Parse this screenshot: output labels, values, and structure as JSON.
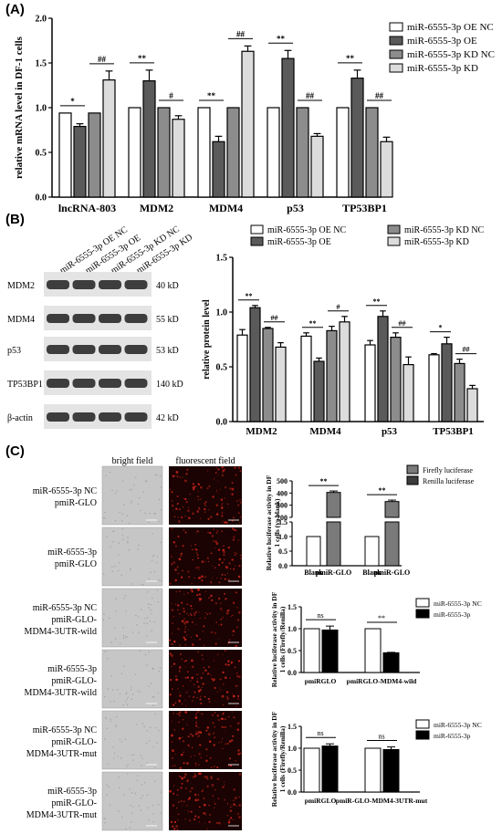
{
  "panels": {
    "a": "(A)",
    "b": "(B)",
    "c": "(C)"
  },
  "colors": {
    "oe_nc": "#ffffff",
    "oe": "#5a5a5a",
    "kd_nc": "#8c8c8c",
    "kd": "#dcdcdc",
    "firefly": "#787878",
    "renilla": "#3c3c3c",
    "black": "#000000",
    "red_field": "#c2241b"
  },
  "blot": {
    "lanes": [
      "miR-6555-3p OE NC",
      "miR-6555-3p OE",
      "miR-6555-3p KD NC",
      "miR-6555-3p KD"
    ],
    "rows": [
      {
        "name": "MDM2",
        "kd": "40 kD"
      },
      {
        "name": "MDM4",
        "kd": "55 kD"
      },
      {
        "name": "p53",
        "kd": "53 kD"
      },
      {
        "name": "TP53BP1",
        "kd": "140 kD"
      },
      {
        "name": "β-actin",
        "kd": "42 kD"
      }
    ]
  },
  "micro": {
    "col_headers": [
      "bright field",
      "fluorescent field"
    ],
    "rows": [
      [
        "miR-6555-3p NC",
        "pmiR-GLO"
      ],
      [
        "miR-6555-3p",
        "pmiR-GLO"
      ],
      [
        "miR-6555-3p NC",
        "pmiR-GLO-",
        "MDM4-3UTR-wild"
      ],
      [
        "miR-6555-3p",
        "pmiR-GLO-",
        "MDM4-3UTR-wild"
      ],
      [
        "miR-6555-3p NC",
        "pmiR-GLO-",
        "MDM4-3UTR-mut"
      ],
      [
        "miR-6555-3p",
        "pmiR-GLO-",
        "MDM4-3UTR-mut"
      ]
    ]
  },
  "chart_data": [
    {
      "id": "A",
      "type": "bar",
      "ylabel": "relative mRNA level in DF-1 cells",
      "ylim": [
        0,
        2.0
      ],
      "yticks": [
        "0.0",
        "0.5",
        "1.0",
        "1.5",
        "2.0"
      ],
      "categories": [
        "lncRNA-803",
        "MDM2",
        "MDM4",
        "p53",
        "TP53BP1"
      ],
      "series": [
        {
          "name": "miR-6555-3p OE NC",
          "values": [
            0.94,
            1.0,
            1.0,
            1.0,
            1.0
          ],
          "errors": [
            0.0,
            0.0,
            0.0,
            0.0,
            0.0
          ]
        },
        {
          "name": "miR-6555-3p OE",
          "values": [
            0.79,
            1.3,
            0.62,
            1.55,
            1.33
          ],
          "errors": [
            0.03,
            0.12,
            0.06,
            0.09,
            0.09
          ]
        },
        {
          "name": "miR-6555-3p KD NC",
          "values": [
            0.94,
            1.0,
            1.0,
            1.0,
            1.0
          ],
          "errors": [
            0.0,
            0.0,
            0.0,
            0.0,
            0.0
          ]
        },
        {
          "name": "miR-6555-3p KD",
          "values": [
            1.31,
            0.87,
            1.63,
            0.68,
            0.62
          ],
          "errors": [
            0.1,
            0.04,
            0.06,
            0.03,
            0.05
          ]
        }
      ],
      "annotations": [
        {
          "cat": 0,
          "pair": "oe",
          "text": "*"
        },
        {
          "cat": 0,
          "pair": "kd",
          "text": "##"
        },
        {
          "cat": 1,
          "pair": "oe",
          "text": "**"
        },
        {
          "cat": 1,
          "pair": "kd",
          "text": "#"
        },
        {
          "cat": 2,
          "pair": "oe",
          "text": "**"
        },
        {
          "cat": 2,
          "pair": "kd",
          "text": "##"
        },
        {
          "cat": 3,
          "pair": "oe",
          "text": "**"
        },
        {
          "cat": 3,
          "pair": "kd",
          "text": "##"
        },
        {
          "cat": 4,
          "pair": "oe",
          "text": "**"
        },
        {
          "cat": 4,
          "pair": "kd",
          "text": "##"
        }
      ]
    },
    {
      "id": "B",
      "type": "bar",
      "ylabel": "relative protein level",
      "ylim": [
        0,
        1.5
      ],
      "yticks": [
        "0.0",
        "0.5",
        "1.0",
        "1.5"
      ],
      "categories": [
        "MDM2",
        "MDM4",
        "p53",
        "TP53BP1"
      ],
      "series": [
        {
          "name": "miR-6555-3p OE NC",
          "values": [
            0.79,
            0.78,
            0.7,
            0.61
          ],
          "errors": [
            0.05,
            0.03,
            0.04,
            0.01
          ]
        },
        {
          "name": "miR-6555-3p OE",
          "values": [
            1.04,
            0.55,
            0.96,
            0.71
          ],
          "errors": [
            0.02,
            0.03,
            0.05,
            0.06
          ]
        },
        {
          "name": "miR-6555-3p KD NC",
          "values": [
            0.85,
            0.83,
            0.77,
            0.53
          ],
          "errors": [
            0.01,
            0.04,
            0.04,
            0.04
          ]
        },
        {
          "name": "miR-6555-3p KD",
          "values": [
            0.68,
            0.91,
            0.52,
            0.3
          ],
          "errors": [
            0.04,
            0.05,
            0.07,
            0.03
          ]
        }
      ],
      "annotations": [
        {
          "cat": 0,
          "pair": "oe",
          "text": "**"
        },
        {
          "cat": 0,
          "pair": "kd",
          "text": "##"
        },
        {
          "cat": 1,
          "pair": "oe",
          "text": "**"
        },
        {
          "cat": 1,
          "pair": "kd",
          "text": "#"
        },
        {
          "cat": 2,
          "pair": "oe",
          "text": "**"
        },
        {
          "cat": 2,
          "pair": "kd",
          "text": "##"
        },
        {
          "cat": 3,
          "pair": "oe",
          "text": "*"
        },
        {
          "cat": 3,
          "pair": "kd",
          "text": "##"
        }
      ]
    },
    {
      "id": "C1",
      "type": "bar",
      "ylabel": "Relative luciferase activity in DF-1 cells (vs blank)",
      "broken_axis": {
        "lower": [
          0,
          1.5
        ],
        "upper": [
          200,
          500
        ]
      },
      "lower_ticks": [
        "0.0",
        "0.5",
        "1.0",
        "1.5"
      ],
      "upper_ticks": [
        "200",
        "300",
        "400",
        "500"
      ],
      "categories": [
        "Blank",
        "pmiR-GLO",
        "Blank",
        "pmiR-GLO"
      ],
      "groups": [
        "Firefly luciferase",
        "Renilla luciferase"
      ],
      "values": [
        1.0,
        405,
        1.0,
        330
      ],
      "errors": [
        0,
        12,
        0,
        12
      ],
      "annotations": [
        {
          "group": 0,
          "text": "**"
        },
        {
          "group": 1,
          "text": "**"
        }
      ]
    },
    {
      "id": "C2",
      "type": "bar",
      "ylabel": "Relative luciferase activity in DF-1 cells (Firefly/Renilla)",
      "ylim": [
        0,
        1.5
      ],
      "yticks": [
        "0.0",
        "0.5",
        "1.0",
        "1.5"
      ],
      "categories": [
        "pmiRGLO",
        "pmiRGLO-MDM4-wild"
      ],
      "series": [
        {
          "name": "miR-6555-3p NC",
          "values": [
            1.0,
            1.0
          ],
          "errors": [
            0,
            0
          ]
        },
        {
          "name": "miR-6555-3p",
          "values": [
            0.97,
            0.45
          ],
          "errors": [
            0.09,
            0.01
          ]
        }
      ],
      "annotations": [
        {
          "cat": 0,
          "text": "ns"
        },
        {
          "cat": 1,
          "text": "**"
        }
      ]
    },
    {
      "id": "C3",
      "type": "bar",
      "ylabel": "Relative luciferase activity in DF-1 cells (Firefly/Renilla)",
      "ylim": [
        0,
        1.5
      ],
      "yticks": [
        "0.0",
        "0.5",
        "1.0",
        "1.5"
      ],
      "categories": [
        "pmiRGLO",
        "pmiR-GLO-MDM4-3UTR-mut"
      ],
      "series": [
        {
          "name": "miR-6555-3p NC",
          "values": [
            1.0,
            1.0
          ],
          "errors": [
            0,
            0
          ]
        },
        {
          "name": "miR-6555-3p",
          "values": [
            1.05,
            0.97
          ],
          "errors": [
            0.05,
            0.06
          ]
        }
      ],
      "annotations": [
        {
          "cat": 0,
          "text": "ns"
        },
        {
          "cat": 1,
          "text": "ns"
        }
      ]
    }
  ]
}
